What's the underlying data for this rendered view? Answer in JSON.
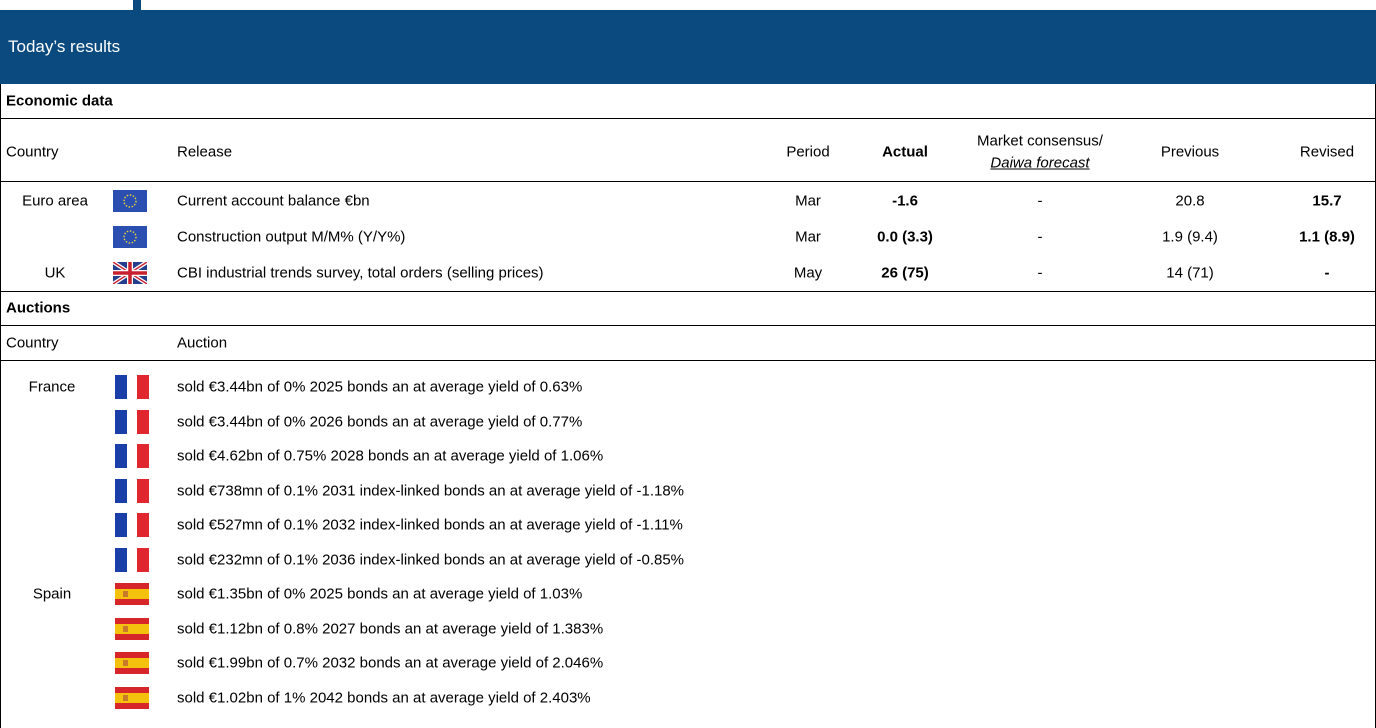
{
  "header": {
    "title": "Today’s results"
  },
  "economic_data": {
    "title": "Economic data",
    "columns": {
      "country": "Country",
      "release": "Release",
      "period": "Period",
      "actual": "Actual",
      "consensus": "Market consensus/",
      "forecast": "Daiwa forecast",
      "previous": "Previous",
      "revised": "Revised"
    },
    "groups": [
      {
        "country": "Euro area",
        "releases": [
          {
            "release": "Current account balance €bn",
            "period": "Mar",
            "actual": "-1.6",
            "consensus": "-",
            "previous": "20.8",
            "revised": "15.7"
          },
          {
            "release": "Construction output M/M% (Y/Y%)",
            "period": "Mar",
            "actual": "0.0 (3.3)",
            "consensus": "-",
            "previous": "1.9 (9.4)",
            "revised": "1.1 (8.9)"
          }
        ]
      },
      {
        "country": "UK",
        "releases": [
          {
            "release": "CBI industrial trends survey, total orders (selling prices)",
            "period": "May",
            "actual": "26 (75)",
            "consensus": "-",
            "previous": "14 (71)",
            "revised": "-"
          }
        ]
      }
    ]
  },
  "auctions": {
    "title": "Auctions",
    "columns": {
      "country": "Country",
      "auction": "Auction"
    },
    "groups": [
      {
        "country": "France",
        "items": [
          "sold €3.44bn of 0% 2025 bonds an at average yield of 0.63%",
          "sold €3.44bn of 0% 2026 bonds an at average yield of 0.77%",
          "sold €4.62bn of 0.75% 2028 bonds an at average yield of 1.06%",
          "sold €738mn of 0.1% 2031 index-linked bonds an at average yield of -1.18%",
          "sold €527mn of 0.1% 2032 index-linked bonds an at average yield of -1.11%",
          "sold €232mn of 0.1% 2036 index-linked bonds an at average yield of -0.85%"
        ]
      },
      {
        "country": "Spain",
        "items": [
          "sold €1.35bn of 0% 2025 bonds an at average yield of 1.03%",
          "sold €1.12bn of 0.8% 2027 bonds an at average yield of 1.383%",
          "sold €1.99bn of 0.7% 2032 bonds an at average yield of 2.046%",
          "sold €1.02bn of 1% 2042 bonds an at average yield of 2.403%"
        ]
      }
    ]
  }
}
